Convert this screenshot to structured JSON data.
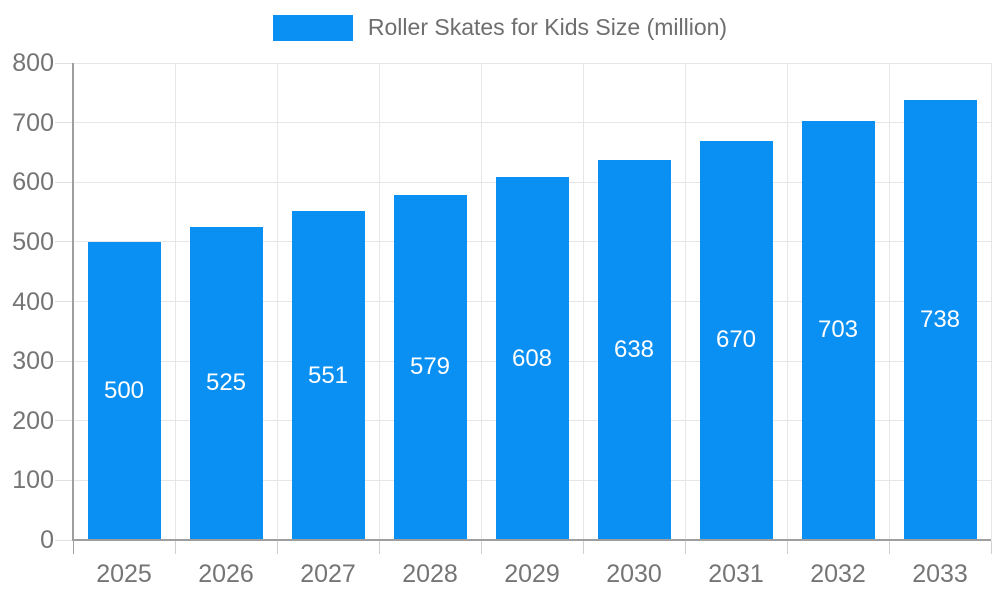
{
  "legend": {
    "label": "Roller Skates for Kids Size (million)"
  },
  "colors": {
    "bar": "#0A8FF2",
    "grid": "#e6e6e6",
    "axis": "#9e9e9e",
    "tick": "#cfcfcf",
    "axis_label_text": "#757575",
    "legend_text": "#6e6e6e",
    "value_label_text": "#ffffff",
    "background": "#ffffff"
  },
  "chart_data": {
    "type": "bar",
    "title": "Roller Skates for Kids Size (million)",
    "series_name": "Roller Skates for Kids Size (million)",
    "categories": [
      "2025",
      "2026",
      "2027",
      "2028",
      "2029",
      "2030",
      "2031",
      "2032",
      "2033"
    ],
    "values": [
      500,
      525,
      551,
      579,
      608,
      638,
      670,
      703,
      738
    ],
    "value_labels_position": "inside-center",
    "xlabel": "",
    "ylabel": "",
    "ylim": [
      0,
      800
    ],
    "yticks": [
      0,
      100,
      200,
      300,
      400,
      500,
      600,
      700,
      800
    ],
    "grid": true,
    "legend_position": "top-center"
  }
}
